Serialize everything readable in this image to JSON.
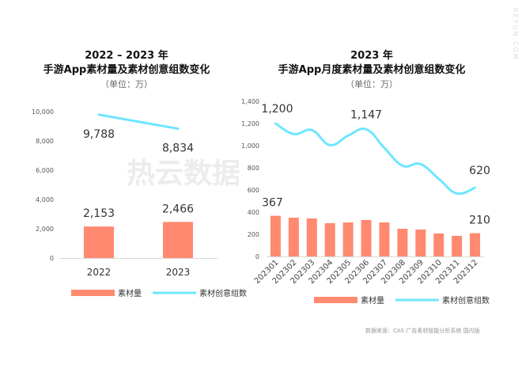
{
  "watermark": "热云数据",
  "side_text": "REYUN.COM",
  "source": "数据来源：CAS 广告素材智能分析系统 国内版",
  "colors": {
    "bar": "#ff8a70",
    "line": "#6ee6ff"
  },
  "chart_data": [
    {
      "type": "bar+line",
      "title_line1": "2022 – 2023 年",
      "title_line2": "手游App素材量及素材创意组数变化",
      "unit": "（单位：万）",
      "categories": [
        "2022",
        "2023"
      ],
      "ylim": [
        0,
        10000
      ],
      "yticks": [
        "0",
        "2,000",
        "4,000",
        "6,000",
        "8,000",
        "10,000"
      ],
      "ytick_values": [
        0,
        2000,
        4000,
        6000,
        8000,
        10000
      ],
      "series": [
        {
          "name": "素材量",
          "type": "bar",
          "values": [
            2153,
            2466
          ],
          "labels": [
            "2,153",
            "2,466"
          ]
        },
        {
          "name": "素材创意组数",
          "type": "line",
          "values": [
            9788,
            8834
          ],
          "labels": [
            "9,788",
            "8,834"
          ]
        }
      ],
      "legend": "bottom"
    },
    {
      "type": "bar+line",
      "title_line1": "2023 年",
      "title_line2": "手游App月度素材量及素材创意组数变化",
      "unit": "（单位：万）",
      "categories": [
        "202301",
        "202302",
        "202303",
        "202304",
        "202305",
        "202306",
        "202307",
        "202308",
        "202309",
        "202310",
        "202311",
        "202312"
      ],
      "ylim": [
        0,
        1400
      ],
      "yticks": [
        "0",
        "200",
        "400",
        "600",
        "800",
        "1,000",
        "1,200",
        "1,400"
      ],
      "ytick_values": [
        0,
        200,
        400,
        600,
        800,
        1000,
        1200,
        1400
      ],
      "series": [
        {
          "name": "素材量",
          "type": "bar",
          "values": [
            367,
            350,
            343,
            300,
            307,
            329,
            307,
            250,
            243,
            207,
            186,
            210
          ],
          "labels": {
            "0": "367",
            "11": "210"
          }
        },
        {
          "name": "素材创意组数",
          "type": "line",
          "values": [
            1200,
            1105,
            1140,
            1005,
            1090,
            1147,
            980,
            819,
            833,
            700,
            569,
            620
          ],
          "labels": {
            "0": "1,200",
            "5": "1,147",
            "11": "620"
          }
        }
      ],
      "legend": "bottom"
    }
  ]
}
